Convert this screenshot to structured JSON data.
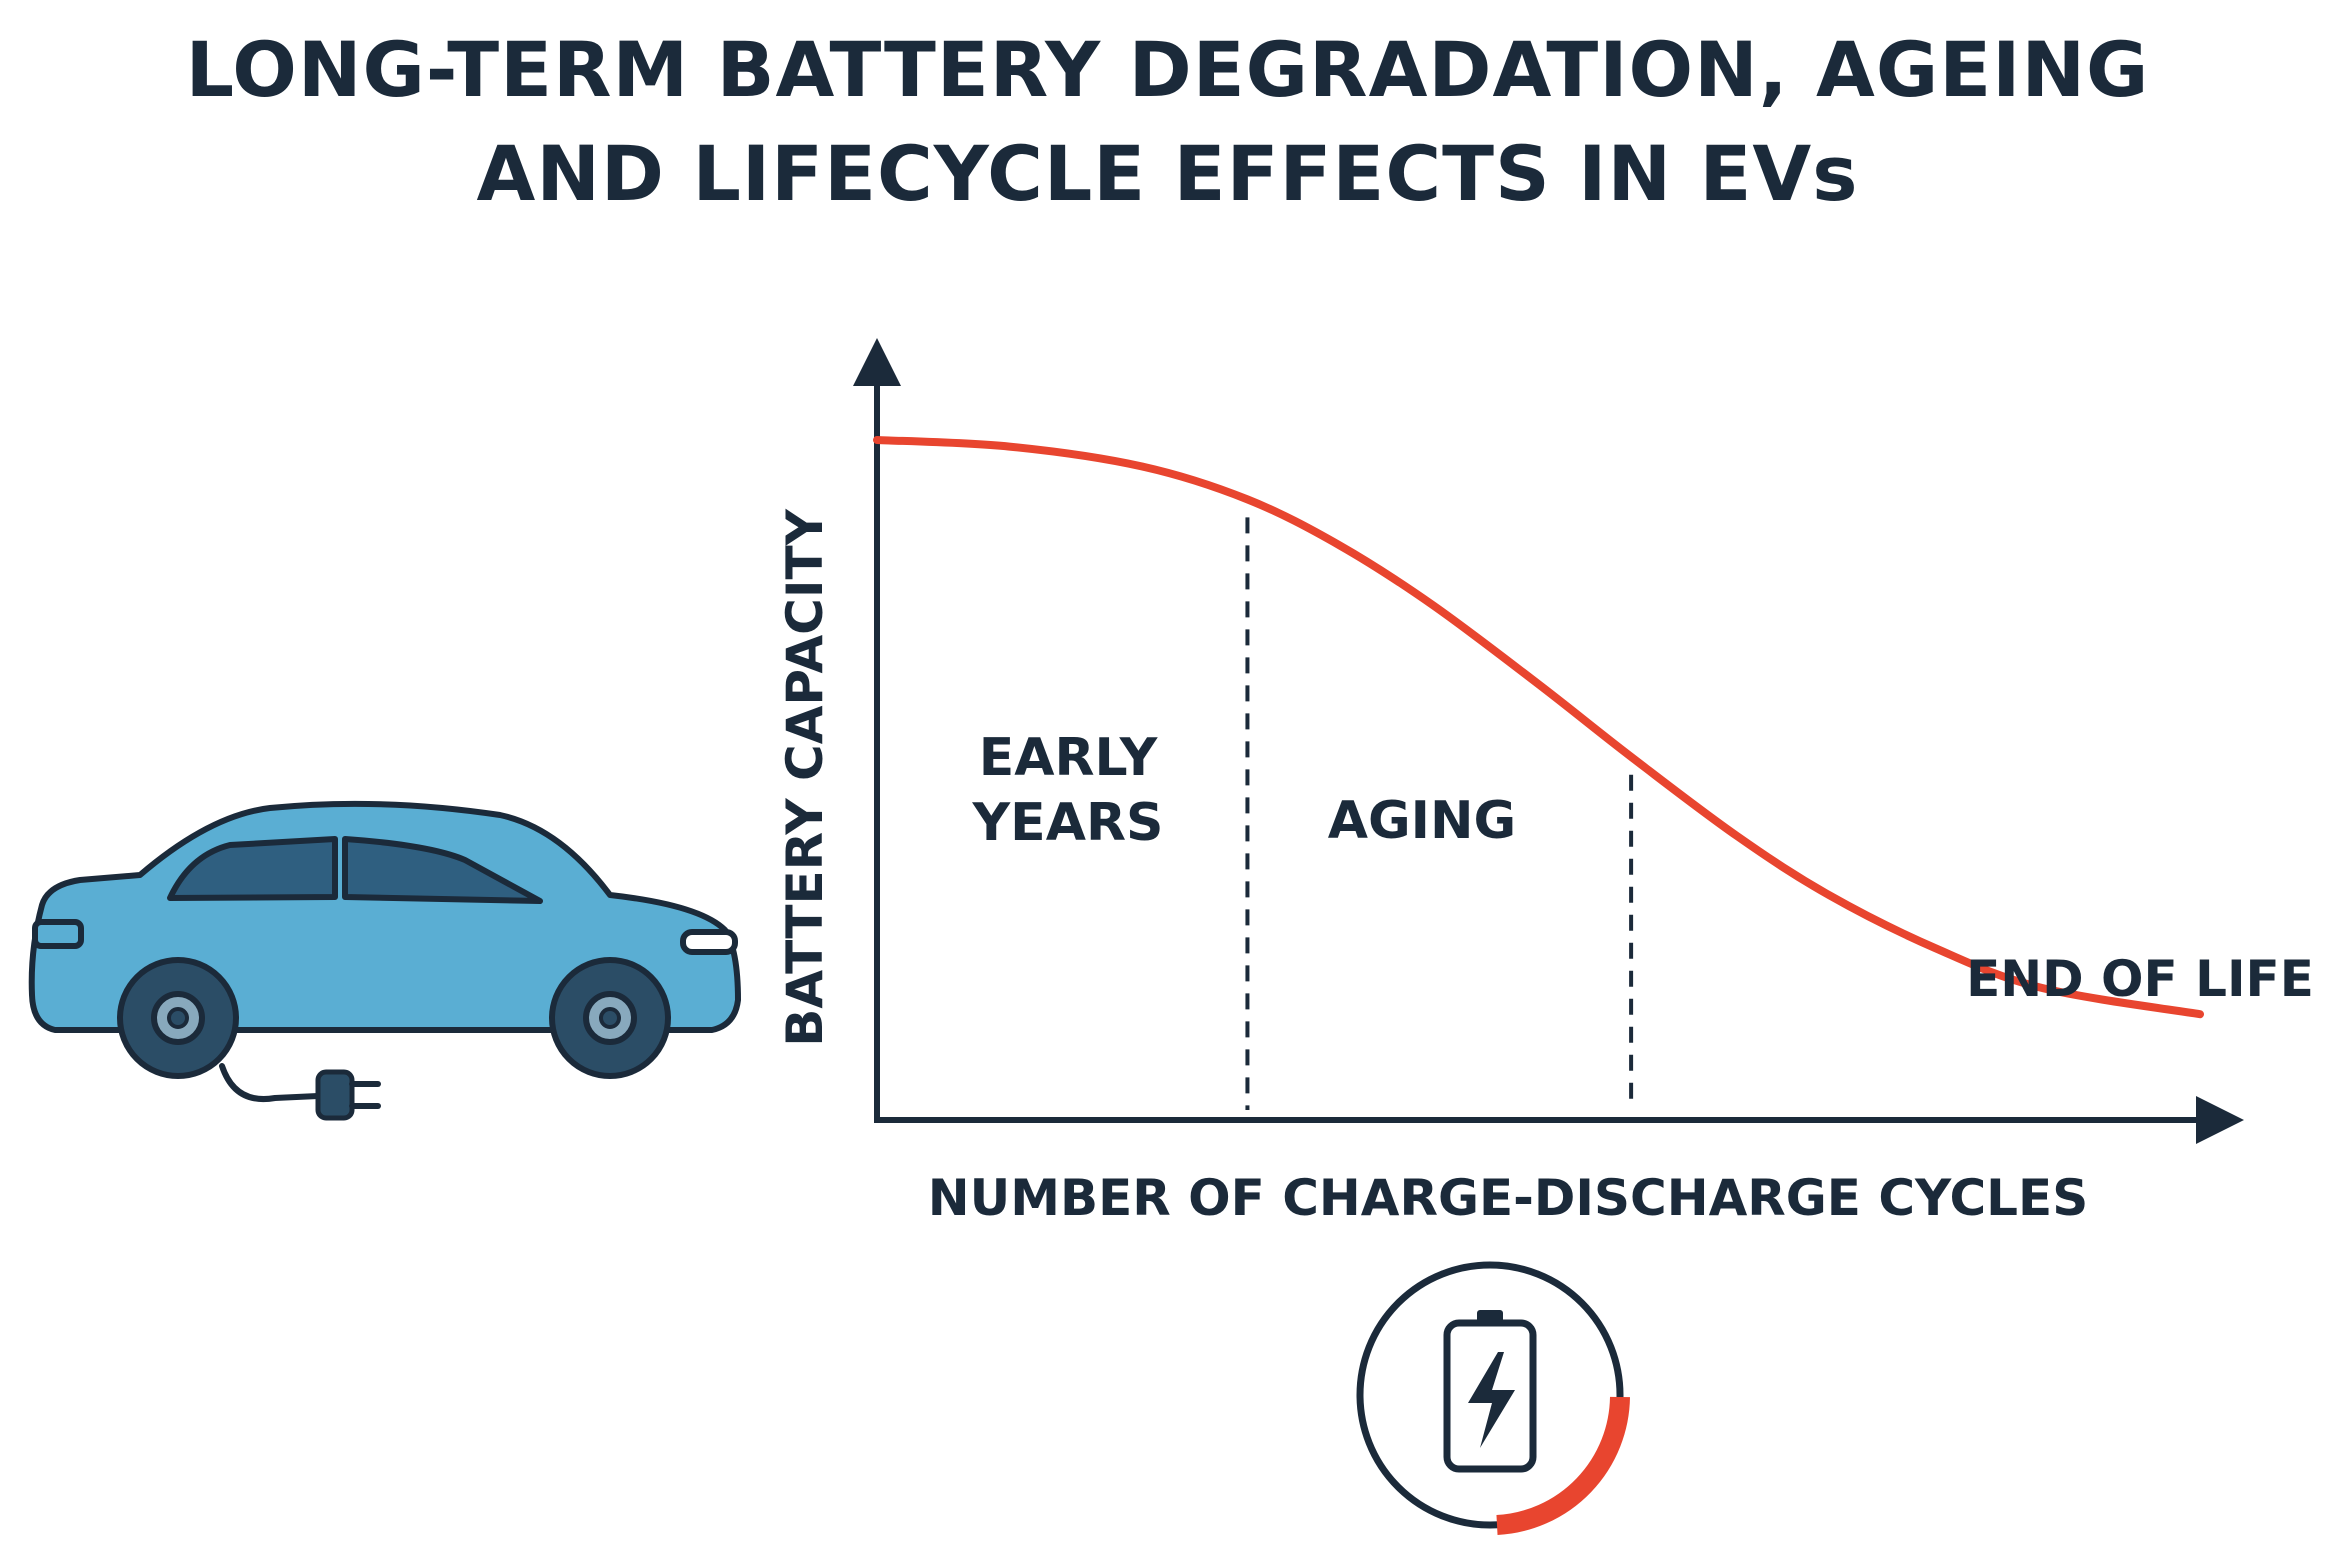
{
  "title": {
    "line1": "LONG-TERM BATTERY DEGRADATION, AGEING",
    "line2": "AND LIFECYCLE EFFECTS IN EVs"
  },
  "chart_data": {
    "type": "line",
    "title": "LONG-TERM BATTERY DEGRADATION, AGEING AND LIFECYCLE EFFECTS IN EVs",
    "xlabel": "NUMBER OF CHARGE-DISCHARGE CYCLES",
    "ylabel": "BATTERY CAPACITY",
    "x": [
      0,
      10,
      20,
      28,
      35,
      42,
      50,
      57,
      65,
      72,
      80,
      88,
      100
    ],
    "y": [
      100,
      99,
      96,
      91,
      84,
      75,
      63,
      52,
      40,
      31,
      23,
      17,
      13
    ],
    "xlim": [
      0,
      100
    ],
    "ylim": [
      0,
      100
    ],
    "grid": false,
    "region_boundaries_x": [
      28,
      57
    ],
    "regions": [
      {
        "line1": "EARLY",
        "line2": "YEARS"
      },
      {
        "line1": "AGING",
        "line2": ""
      }
    ],
    "end_label": "END OF LIFE",
    "curve_color": "#e8452f"
  },
  "colors": {
    "car_body": "#5aaed3",
    "car_window": "#2f5f80",
    "outline": "#1b2a3a",
    "accent": "#e8452f"
  },
  "icons": {
    "car": "electric-car-icon",
    "plug": "plug-icon",
    "battery": "battery-charging-icon"
  }
}
